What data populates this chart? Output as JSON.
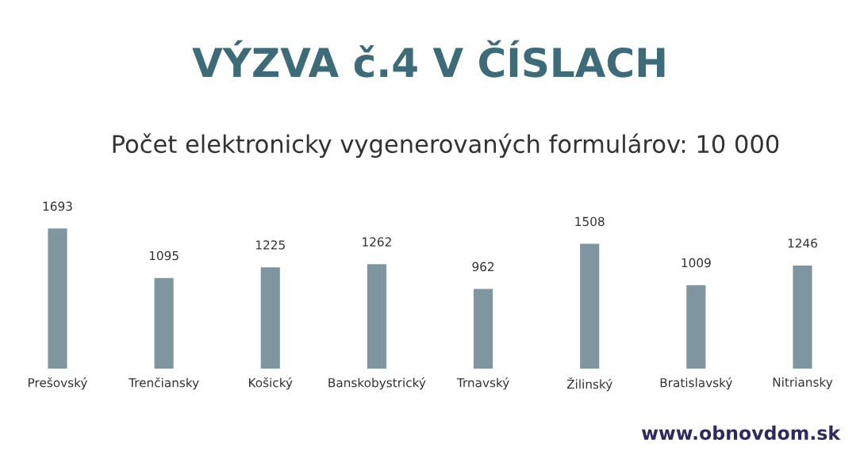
{
  "chart_data": {
    "type": "bar",
    "title": "VÝZVA č.4 V ČÍSLACH",
    "subtitle": "Počet elektronicky vygenerovaných formulárov: 10 000",
    "categories": [
      "Prešovský",
      "Trenčiansky",
      "Košický",
      "Banskobystrický",
      "Trnavský",
      "Žilinský",
      "Bratislavský",
      "Nitriansky"
    ],
    "values": [
      1693,
      1095,
      1225,
      1262,
      962,
      1508,
      1009,
      1246
    ],
    "color": "#7f96a0",
    "data_labels": true,
    "grid": false,
    "legend": false,
    "annotations": [
      "www.obnovdom.sk"
    ]
  }
}
